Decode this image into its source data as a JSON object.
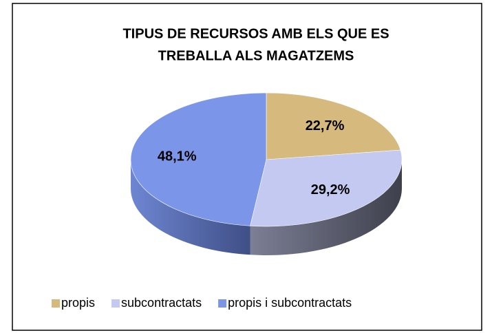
{
  "chart_data": {
    "type": "pie3d",
    "title": [
      "TIPUS DE RECURSOS AMB ELS QUE ES",
      "TREBALLA ALS MAGATZEMS"
    ],
    "categories": [
      "propis",
      "subcontractats",
      "propis i subcontractats"
    ],
    "values": [
      22.7,
      29.2,
      48.1
    ],
    "value_labels": [
      "22,7%",
      "29,2%",
      "48,1%"
    ],
    "colors": [
      "#d6b97c",
      "#c3c9f0",
      "#7b96e8"
    ],
    "legend": "bottom"
  }
}
